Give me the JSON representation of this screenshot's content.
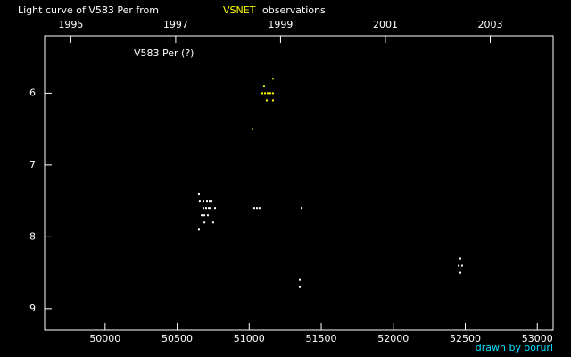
{
  "chart_data": {
    "type": "scatter",
    "title": "Light curve of V583 Per from",
    "title_highlight": "VSNET",
    "title_suffix": "observations",
    "annotation": "V583 Per (?)",
    "credit": "drawn by ooruri",
    "xlim": [
      49580,
      53110
    ],
    "xticks": [
      50000,
      50500,
      51000,
      51500,
      52000,
      52500,
      53000
    ],
    "x2lim": [
      1994.5,
      2004.2
    ],
    "x2ticks": [
      1995,
      1997,
      1999,
      2001,
      2003
    ],
    "ylim": [
      5.2,
      9.3
    ],
    "yticks": [
      6,
      7,
      8,
      9
    ],
    "y_inverted": true,
    "series": [
      {
        "color": "#ffffff",
        "x": [
          50651,
          50657,
          50682,
          50707,
          50726,
          50738,
          50682,
          50701,
          50720,
          50732,
          50763,
          50670,
          50689,
          50713,
          50689,
          50750,
          50651,
          51035,
          51054,
          51072,
          51364,
          51351,
          51351,
          52466,
          52454,
          52478,
          52466
        ],
        "values": [
          7.4,
          7.5,
          7.5,
          7.5,
          7.5,
          7.5,
          7.6,
          7.6,
          7.6,
          7.6,
          7.6,
          7.7,
          7.7,
          7.7,
          7.8,
          7.8,
          7.9,
          7.6,
          7.6,
          7.6,
          7.6,
          8.6,
          8.7,
          8.3,
          8.4,
          8.4,
          8.5
        ]
      },
      {
        "color": "#ffff00",
        "x": [
          51023,
          51103,
          51165,
          51091,
          51110,
          51128,
          51147,
          51165,
          51122,
          51165
        ],
        "values": [
          6.5,
          5.9,
          5.8,
          6.0,
          6.0,
          6.0,
          6.0,
          6.0,
          6.1,
          6.1
        ]
      }
    ]
  }
}
